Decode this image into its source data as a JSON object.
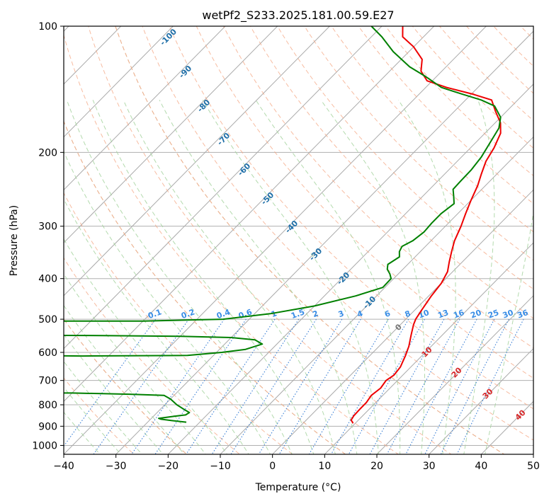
{
  "chart_data": {
    "type": "line",
    "chart_kind": "skew-t log-p sounding",
    "title": "wetPf2_S233.2025.181.00.59.E27",
    "xlabel": "Temperature (°C)",
    "ylabel": "Pressure (hPa)",
    "xlim": [
      -40,
      50
    ],
    "ylim": [
      1050,
      100
    ],
    "y_scale": "log",
    "grid": true,
    "x_ticks": [
      -40,
      -30,
      -20,
      -10,
      0,
      10,
      20,
      30,
      40,
      50
    ],
    "y_ticks": [
      100,
      200,
      300,
      400,
      500,
      600,
      700,
      800,
      900,
      1000
    ],
    "isotherm_labels": [
      "-100",
      "-90",
      "-80",
      "-70",
      "-60",
      "-50",
      "-40",
      "-30",
      "-20",
      "-10",
      "0",
      "10",
      "20",
      "30",
      "40"
    ],
    "isotherm_label_temps": [
      -100,
      -90,
      -80,
      -70,
      -60,
      -50,
      -40,
      -30,
      -20,
      -10,
      0,
      10,
      20,
      30,
      40
    ],
    "mixing_ratio_labels": [
      "0.1",
      "0.2",
      "0.4",
      "0.6",
      "1",
      "1.5",
      "2",
      "3",
      "4",
      "6",
      "8",
      "10",
      "13",
      "16",
      "20",
      "25",
      "30",
      "36"
    ],
    "mixing_ratio_values": [
      0.1,
      0.2,
      0.4,
      0.6,
      1,
      1.5,
      2,
      3,
      4,
      6,
      8,
      10,
      13,
      16,
      20,
      25,
      30,
      36
    ],
    "colors": {
      "temperature": "#ee0000",
      "dewpoint": "#008000",
      "isotherm": "#aaaaaa",
      "dry_adiabat": "#f4a582",
      "moist_adiabat": "#a6d49f",
      "mixing_ratio": "#3a7fd5",
      "isotherm_label_cold": "#1f6fa8",
      "isotherm_label_warm": "#d62728",
      "mixing_ratio_label": "#3a8ee6",
      "background_theta": "#d8c8a8"
    },
    "series": [
      {
        "name": "T",
        "points": [
          [
            9.6,
            886
          ],
          [
            8.6,
            870
          ],
          [
            8.3,
            850
          ],
          [
            8.2,
            820
          ],
          [
            8.2,
            790
          ],
          [
            7.8,
            760
          ],
          [
            8.2,
            730
          ],
          [
            7.8,
            700
          ],
          [
            8.3,
            680
          ],
          [
            8.0,
            650
          ],
          [
            6.8,
            610
          ],
          [
            5.7,
            580
          ],
          [
            4.0,
            545
          ],
          [
            2.5,
            515
          ],
          [
            1.9,
            500
          ],
          [
            1.3,
            475
          ],
          [
            0.5,
            440
          ],
          [
            0.0,
            410
          ],
          [
            -1.0,
            385
          ],
          [
            -2.5,
            365
          ],
          [
            -4.0,
            345
          ],
          [
            -5.5,
            325
          ],
          [
            -7.0,
            300
          ],
          [
            -8.5,
            280
          ],
          [
            -10.0,
            260
          ],
          [
            -11.5,
            240
          ],
          [
            -13.0,
            225
          ],
          [
            -14.5,
            210
          ],
          [
            -15.5,
            195
          ],
          [
            -17.0,
            180
          ],
          [
            -19.0,
            170
          ],
          [
            -22.0,
            160
          ],
          [
            -25.0,
            150
          ],
          [
            -30.0,
            145
          ],
          [
            -36.0,
            140
          ],
          [
            -41.0,
            135
          ],
          [
            -44.0,
            128
          ],
          [
            -46.0,
            120
          ],
          [
            -50.0,
            112
          ],
          [
            -54.0,
            106
          ],
          [
            -56.0,
            100
          ]
        ]
      },
      {
        "name": "Td",
        "points": [
          [
            -22.6,
            880
          ],
          [
            -25.8,
            872
          ],
          [
            -28.0,
            866
          ],
          [
            -28.6,
            862
          ],
          [
            -26.0,
            852
          ],
          [
            -24.1,
            846
          ],
          [
            -23.8,
            835
          ],
          [
            -25.5,
            820
          ],
          [
            -27.7,
            800
          ],
          [
            -30.0,
            775
          ],
          [
            -31.9,
            760
          ],
          [
            -38.7,
            755
          ],
          [
            -50.0,
            750
          ],
          [
            -70.0,
            747
          ],
          [
            -70.0,
            610
          ],
          [
            -55.0,
            612
          ],
          [
            -35.0,
            610
          ],
          [
            -29.0,
            600
          ],
          [
            -25.0,
            590
          ],
          [
            -22.8,
            573
          ],
          [
            -25.0,
            560
          ],
          [
            -30.0,
            553
          ],
          [
            -40.0,
            549
          ],
          [
            -55.0,
            547
          ],
          [
            -70.0,
            546
          ],
          [
            -70.0,
            505
          ],
          [
            -50.0,
            505
          ],
          [
            -35.0,
            500
          ],
          [
            -27.0,
            485
          ],
          [
            -20.0,
            465
          ],
          [
            -14.0,
            440
          ],
          [
            -10.4,
            420
          ],
          [
            -10.5,
            400
          ],
          [
            -11.6,
            390
          ],
          [
            -13.0,
            380
          ],
          [
            -13.8,
            370
          ],
          [
            -13.0,
            355
          ],
          [
            -14.0,
            345
          ],
          [
            -14.5,
            335
          ],
          [
            -13.5,
            325
          ],
          [
            -13.0,
            310
          ],
          [
            -13.2,
            295
          ],
          [
            -13.2,
            280
          ],
          [
            -12.6,
            265
          ],
          [
            -14.0,
            255
          ],
          [
            -15.5,
            245
          ],
          [
            -15.6,
            235
          ],
          [
            -15.7,
            220
          ],
          [
            -16.2,
            205
          ],
          [
            -17.2,
            190
          ],
          [
            -18.3,
            175
          ],
          [
            -20.0,
            165
          ],
          [
            -23.3,
            155
          ],
          [
            -27.0,
            150
          ],
          [
            -32.0,
            145
          ],
          [
            -37.0,
            140
          ],
          [
            -42.0,
            132
          ],
          [
            -47.0,
            125
          ],
          [
            -53.0,
            115
          ],
          [
            -58.0,
            106
          ],
          [
            -62.0,
            100
          ]
        ]
      }
    ]
  }
}
